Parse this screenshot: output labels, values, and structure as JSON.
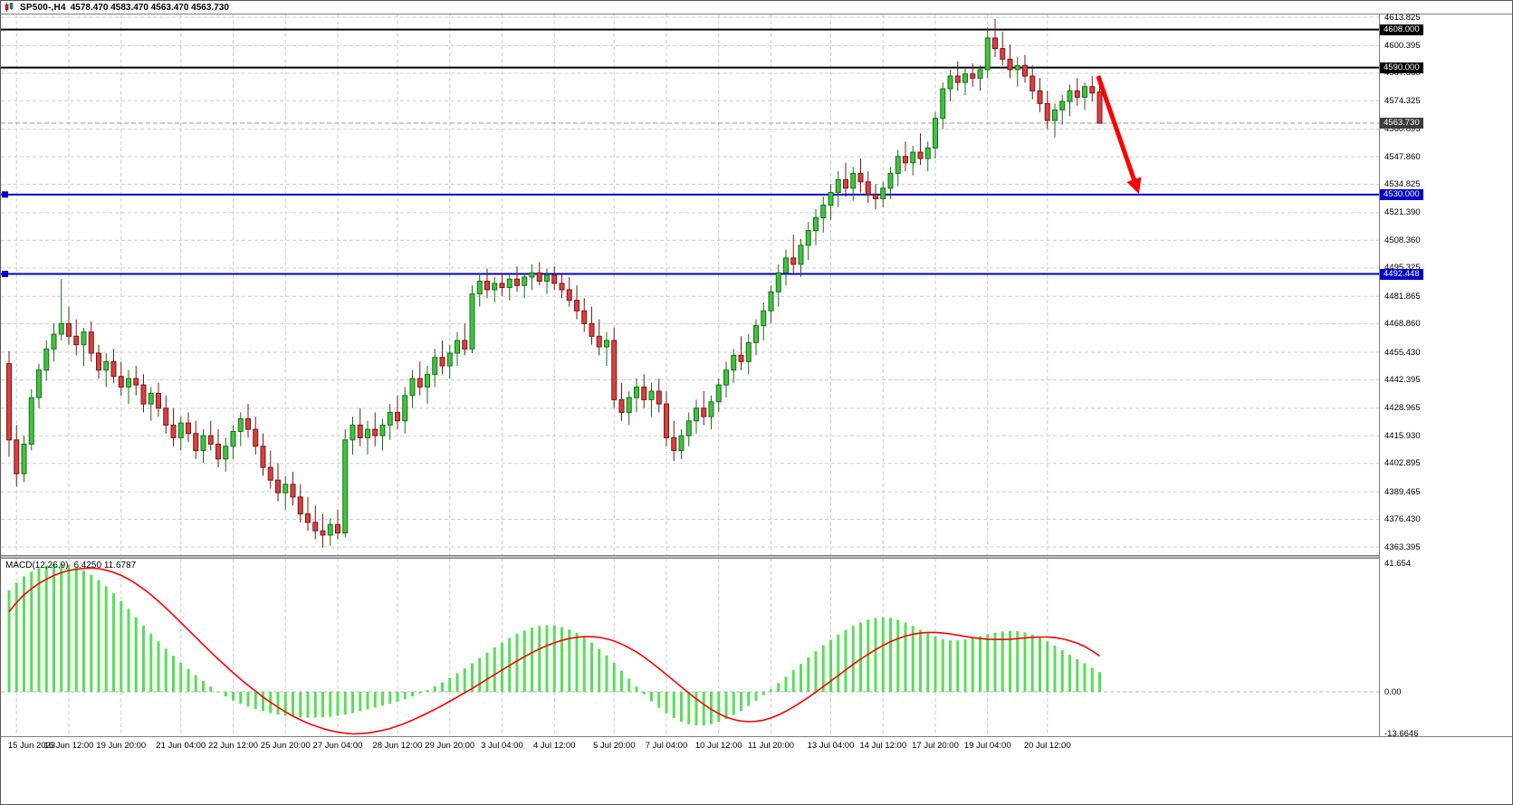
{
  "titlebar": {
    "symbol": "SP500-,H4",
    "ohlc": "4578.470 4583.470 4563.470 4563.730"
  },
  "colors": {
    "bull_fill": "#3fc43f",
    "bull_stroke": "#1c6b1c",
    "bear_fill": "#d84040",
    "bear_stroke": "#7a1515",
    "hist": "#55e055",
    "signal": "#ff0000",
    "level_black": "#000000",
    "level_blue": "#0000cc",
    "grid": "#cdcdcd",
    "bid_line": "#9a9a9a",
    "arrow": "#ff0000"
  },
  "chart_data": {
    "type": "candlestick",
    "title": "SP500-,H4",
    "timeframe": "H4",
    "price_range": [
      4363.395,
      4613.825
    ],
    "price_ticks": [
      4613.825,
      4600.395,
      4587.36,
      4574.325,
      4560.895,
      4547.86,
      4534.825,
      4521.39,
      4508.36,
      4495.325,
      4481.865,
      4468.86,
      4455.43,
      4442.395,
      4428.965,
      4415.93,
      4402.895,
      4389.465,
      4376.43,
      4363.395
    ],
    "level_lines": [
      {
        "value": 4608.0,
        "label": "4608.000",
        "style": "black"
      },
      {
        "value": 4590.0,
        "label": "4590.000",
        "style": "black"
      },
      {
        "value": 4530.0,
        "label": "4530.000",
        "style": "blue"
      },
      {
        "value": 4492.448,
        "label": "4492.448",
        "style": "blue"
      }
    ],
    "current_price": {
      "value": 4563.73,
      "label": "4563.730"
    },
    "time_ticks": [
      {
        "index": 1,
        "label": "15 Jun 2023"
      },
      {
        "index": 8,
        "label": "16 Jun 12:00"
      },
      {
        "index": 15,
        "label": "19 Jun 20:00"
      },
      {
        "index": 23,
        "label": "21 Jun 04:00"
      },
      {
        "index": 30,
        "label": "22 Jun 12:00"
      },
      {
        "index": 37,
        "label": "25 Jun 20:00"
      },
      {
        "index": 44,
        "label": "27 Jun 04:00"
      },
      {
        "index": 52,
        "label": "28 Jun 12:00"
      },
      {
        "index": 59,
        "label": "29 Jun 20:00"
      },
      {
        "index": 66,
        "label": "3 Jul 04:00"
      },
      {
        "index": 73,
        "label": "4 Jul 12:00"
      },
      {
        "index": 81,
        "label": "5 Jul 20:00"
      },
      {
        "index": 88,
        "label": "7 Jul 04:00"
      },
      {
        "index": 95,
        "label": "10 Jul 12:00"
      },
      {
        "index": 102,
        "label": "11 Jul 20:00"
      },
      {
        "index": 110,
        "label": "13 Jul 04:00"
      },
      {
        "index": 117,
        "label": "14 Jul 12:00"
      },
      {
        "index": 124,
        "label": "17 Jul 20:00"
      },
      {
        "index": 131,
        "label": "19 Jul 04:00"
      },
      {
        "index": 139,
        "label": "20 Jul 12:00"
      }
    ],
    "candles": [
      [
        4450,
        4456,
        4406,
        4414
      ],
      [
        4414,
        4421,
        4392,
        4398
      ],
      [
        4398,
        4416,
        4394,
        4412
      ],
      [
        4412,
        4438,
        4409,
        4434
      ],
      [
        4434,
        4450,
        4429,
        4447
      ],
      [
        4447,
        4461,
        4442,
        4457
      ],
      [
        4457,
        4469,
        4451,
        4464
      ],
      [
        4464,
        4490,
        4461,
        4469
      ],
      [
        4469,
        4477,
        4459,
        4463
      ],
      [
        4463,
        4471,
        4454,
        4459
      ],
      [
        4459,
        4467,
        4449,
        4465
      ],
      [
        4465,
        4470,
        4451,
        4455
      ],
      [
        4455,
        4459,
        4443,
        4447
      ],
      [
        4447,
        4455,
        4439,
        4451
      ],
      [
        4451,
        4457,
        4441,
        4444
      ],
      [
        4444,
        4451,
        4435,
        4439
      ],
      [
        4439,
        4447,
        4431,
        4443
      ],
      [
        4443,
        4449,
        4435,
        4440
      ],
      [
        4440,
        4445,
        4427,
        4431
      ],
      [
        4431,
        4439,
        4423,
        4436
      ],
      [
        4436,
        4441,
        4425,
        4429
      ],
      [
        4429,
        4435,
        4417,
        4421
      ],
      [
        4421,
        4429,
        4411,
        4415
      ],
      [
        4415,
        4425,
        4409,
        4422
      ],
      [
        4422,
        4427,
        4413,
        4417
      ],
      [
        4417,
        4423,
        4405,
        4409
      ],
      [
        4409,
        4419,
        4403,
        4416
      ],
      [
        4416,
        4423,
        4409,
        4412
      ],
      [
        4412,
        4419,
        4401,
        4405
      ],
      [
        4405,
        4415,
        4399,
        4411
      ],
      [
        4411,
        4421,
        4405,
        4418
      ],
      [
        4418,
        4427,
        4411,
        4424
      ],
      [
        4424,
        4431,
        4415,
        4419
      ],
      [
        4419,
        4425,
        4407,
        4411
      ],
      [
        4411,
        4417,
        4397,
        4401
      ],
      [
        4401,
        4409,
        4391,
        4395
      ],
      [
        4395,
        4403,
        4385,
        4389
      ],
      [
        4389,
        4397,
        4381,
        4393
      ],
      [
        4393,
        4399,
        4383,
        4387
      ],
      [
        4387,
        4393,
        4375,
        4379
      ],
      [
        4379,
        4387,
        4371,
        4375
      ],
      [
        4375,
        4383,
        4367,
        4371
      ],
      [
        4371,
        4379,
        4363,
        4369
      ],
      [
        4369,
        4377,
        4364,
        4374
      ],
      [
        4374,
        4381,
        4367,
        4370
      ],
      [
        4370,
        4419,
        4368,
        4414
      ],
      [
        4414,
        4425,
        4407,
        4421
      ],
      [
        4421,
        4429,
        4411,
        4415
      ],
      [
        4415,
        4423,
        4407,
        4419
      ],
      [
        4419,
        4427,
        4411,
        4416
      ],
      [
        4416,
        4424,
        4409,
        4421
      ],
      [
        4421,
        4431,
        4414,
        4427
      ],
      [
        4427,
        4435,
        4419,
        4423
      ],
      [
        4423,
        4439,
        4417,
        4435
      ],
      [
        4435,
        4447,
        4429,
        4443
      ],
      [
        4443,
        4451,
        4435,
        4439
      ],
      [
        4439,
        4449,
        4431,
        4445
      ],
      [
        4445,
        4457,
        4439,
        4453
      ],
      [
        4453,
        4461,
        4445,
        4449
      ],
      [
        4449,
        4459,
        4443,
        4455
      ],
      [
        4455,
        4465,
        4449,
        4461
      ],
      [
        4461,
        4469,
        4454,
        4457
      ],
      [
        4457,
        4487,
        4455,
        4483
      ],
      [
        4483,
        4493,
        4477,
        4489
      ],
      [
        4489,
        4495,
        4481,
        4485
      ],
      [
        4485,
        4491,
        4479,
        4488
      ],
      [
        4488,
        4493,
        4482,
        4486
      ],
      [
        4486,
        4492,
        4480,
        4490
      ],
      [
        4490,
        4496,
        4484,
        4487
      ],
      [
        4487,
        4493,
        4481,
        4491
      ],
      [
        4491,
        4497,
        4485,
        4493
      ],
      [
        4493,
        4498,
        4487,
        4489
      ],
      [
        4489,
        4495,
        4483,
        4492
      ],
      [
        4492,
        4496,
        4485,
        4488
      ],
      [
        4488,
        4493,
        4481,
        4485
      ],
      [
        4485,
        4491,
        4477,
        4480
      ],
      [
        4480,
        4487,
        4471,
        4475
      ],
      [
        4475,
        4481,
        4465,
        4469
      ],
      [
        4469,
        4477,
        4459,
        4463
      ],
      [
        4463,
        4471,
        4454,
        4458
      ],
      [
        4458,
        4465,
        4449,
        4461
      ],
      [
        4461,
        4467,
        4429,
        4433
      ],
      [
        4433,
        4441,
        4423,
        4427
      ],
      [
        4427,
        4437,
        4421,
        4434
      ],
      [
        4434,
        4443,
        4427,
        4439
      ],
      [
        4439,
        4445,
        4429,
        4433
      ],
      [
        4433,
        4441,
        4425,
        4437
      ],
      [
        4437,
        4443,
        4427,
        4431
      ],
      [
        4431,
        4437,
        4411,
        4415
      ],
      [
        4415,
        4423,
        4404,
        4409
      ],
      [
        4409,
        4419,
        4405,
        4416
      ],
      [
        4416,
        4427,
        4411,
        4423
      ],
      [
        4423,
        4433,
        4417,
        4429
      ],
      [
        4429,
        4437,
        4421,
        4425
      ],
      [
        4425,
        4435,
        4419,
        4432
      ],
      [
        4432,
        4443,
        4427,
        4440
      ],
      [
        4440,
        4451,
        4434,
        4447
      ],
      [
        4447,
        4457,
        4441,
        4454
      ],
      [
        4454,
        4463,
        4447,
        4451
      ],
      [
        4451,
        4464,
        4445,
        4460
      ],
      [
        4460,
        4471,
        4454,
        4468
      ],
      [
        4468,
        4479,
        4461,
        4475
      ],
      [
        4475,
        4487,
        4469,
        4484
      ],
      [
        4484,
        4497,
        4477,
        4493
      ],
      [
        4493,
        4504,
        4487,
        4500
      ],
      [
        4500,
        4511,
        4493,
        4497
      ],
      [
        4497,
        4509,
        4491,
        4506
      ],
      [
        4506,
        4517,
        4499,
        4513
      ],
      [
        4513,
        4523,
        4506,
        4519
      ],
      [
        4519,
        4529,
        4512,
        4525
      ],
      [
        4525,
        4535,
        4518,
        4531
      ],
      [
        4531,
        4541,
        4524,
        4537
      ],
      [
        4537,
        4545,
        4529,
        4533
      ],
      [
        4533,
        4543,
        4527,
        4540
      ],
      [
        4540,
        4547,
        4531,
        4536
      ],
      [
        4536,
        4541,
        4526,
        4530
      ],
      [
        4530,
        4535,
        4523,
        4528
      ],
      [
        4528,
        4536,
        4524,
        4533
      ],
      [
        4533,
        4543,
        4528,
        4540
      ],
      [
        4540,
        4551,
        4534,
        4548
      ],
      [
        4548,
        4555,
        4541,
        4545
      ],
      [
        4545,
        4553,
        4539,
        4550
      ],
      [
        4550,
        4559,
        4544,
        4547
      ],
      [
        4547,
        4555,
        4541,
        4552
      ],
      [
        4552,
        4569,
        4547,
        4566
      ],
      [
        4566,
        4583,
        4561,
        4580
      ],
      [
        4580,
        4589,
        4574,
        4586
      ],
      [
        4586,
        4593,
        4579,
        4583
      ],
      [
        4583,
        4590,
        4577,
        4587
      ],
      [
        4587,
        4592,
        4581,
        4585
      ],
      [
        4585,
        4591,
        4579,
        4589
      ],
      [
        4589,
        4609,
        4585,
        4604
      ],
      [
        4604,
        4613,
        4595,
        4599
      ],
      [
        4599,
        4607,
        4591,
        4594
      ],
      [
        4594,
        4601,
        4585,
        4589
      ],
      [
        4589,
        4595,
        4581,
        4591
      ],
      [
        4591,
        4596,
        4583,
        4586
      ],
      [
        4586,
        4591,
        4575,
        4579
      ],
      [
        4579,
        4585,
        4569,
        4573
      ],
      [
        4573,
        4579,
        4561,
        4565
      ],
      [
        4565,
        4573,
        4557,
        4570
      ],
      [
        4570,
        4577,
        4563,
        4574
      ],
      [
        4574,
        4582,
        4567,
        4579
      ],
      [
        4579,
        4585,
        4572,
        4576
      ],
      [
        4576,
        4583,
        4570,
        4581
      ],
      [
        4581,
        4586,
        4574,
        4578
      ],
      [
        4578.47,
        4583.47,
        4563.47,
        4563.73
      ]
    ],
    "macd": {
      "label": "MACD(12,26,9)",
      "values_text": "6.4250 11.6787",
      "axis_labels": [
        {
          "value": 41.654,
          "label": "41.654"
        },
        {
          "value": 0,
          "label": "0.00"
        },
        {
          "value": -13.6646,
          "label": "-13.6646"
        }
      ],
      "histogram": [
        33,
        35.5,
        37.5,
        39,
        40.2,
        41,
        41.5,
        41.654,
        41.3,
        40.5,
        39.4,
        38,
        36.3,
        34.3,
        32,
        29.5,
        26.9,
        24.2,
        21.5,
        18.9,
        16.4,
        14,
        11.7,
        9.5,
        7.4,
        5.4,
        3.5,
        1.7,
        0,
        -1.5,
        -2.8,
        -3.9,
        -4.8,
        -5.6,
        -6.3,
        -6.9,
        -7.4,
        -7.8,
        -8.1,
        -8.3,
        -8.4,
        -8.4,
        -8.3,
        -8.1,
        -7.8,
        -7.4,
        -6.9,
        -6.3,
        -5.7,
        -5.1,
        -4.5,
        -3.9,
        -3.2,
        -2.4,
        -1.5,
        -0.5,
        0.6,
        1.8,
        3.1,
        4.5,
        6,
        7.6,
        9.3,
        11,
        12.7,
        14.4,
        16,
        17.5,
        18.8,
        19.9,
        20.8,
        21.4,
        21.6,
        21.5,
        21,
        20.2,
        19.1,
        17.7,
        16,
        14,
        11.8,
        9.4,
        6.9,
        4.3,
        1.7,
        -0.8,
        -3.1,
        -5.2,
        -7,
        -8.5,
        -9.7,
        -10.5,
        -10.9,
        -10.9,
        -10.5,
        -9.8,
        -8.8,
        -7.6,
        -6.2,
        -4.6,
        -2.9,
        -1.1,
        0.8,
        2.8,
        4.9,
        7,
        9.1,
        11.2,
        13.2,
        15.1,
        16.9,
        18.6,
        20.1,
        21.4,
        22.5,
        23.4,
        24,
        24.2,
        24,
        23.4,
        22.5,
        21.4,
        20.2,
        19,
        17.9,
        17.1,
        16.7,
        16.7,
        17,
        17.5,
        18.1,
        18.7,
        19.2,
        19.6,
        19.8,
        19.7,
        19.3,
        18.6,
        17.6,
        16.4,
        15,
        13.5,
        12,
        10.6,
        9.3,
        7.8,
        6.425
      ],
      "signal": [
        26,
        29,
        31.5,
        33.5,
        35.2,
        36.6,
        37.8,
        38.7,
        39.4,
        39.8,
        40.1,
        40.2,
        40,
        39.5,
        38.8,
        37.8,
        36.6,
        35.1,
        33.4,
        31.5,
        29.4,
        27.2,
        24.9,
        22.5,
        20.1,
        17.7,
        15.3,
        12.9,
        10.6,
        8.4,
        6.2,
        4.1,
        2.1,
        0.2,
        -1.7,
        -3.4,
        -5,
        -6.5,
        -7.9,
        -9.1,
        -10.2,
        -11.1,
        -11.9,
        -12.6,
        -13.1,
        -13.45,
        -13.6646,
        -13.6,
        -13.4,
        -13,
        -12.5,
        -11.9,
        -11.1,
        -10.2,
        -9.2,
        -8.1,
        -6.9,
        -5.7,
        -4.4,
        -3.1,
        -1.7,
        -0.3,
        1.1,
        2.6,
        4.1,
        5.6,
        7.1,
        8.6,
        10,
        11.4,
        12.7,
        13.9,
        15,
        15.9,
        16.7,
        17.3,
        17.7,
        17.9,
        17.9,
        17.7,
        17.2,
        16.5,
        15.5,
        14.3,
        12.9,
        11.3,
        9.5,
        7.6,
        5.6,
        3.6,
        1.6,
        -0.4,
        -2.3,
        -4.1,
        -5.7,
        -7.1,
        -8.2,
        -9,
        -9.5,
        -9.7,
        -9.6,
        -9.2,
        -8.5,
        -7.5,
        -6.3,
        -4.9,
        -3.4,
        -1.8,
        -0.1,
        1.7,
        3.5,
        5.3,
        7.1,
        8.9,
        10.6,
        12.2,
        13.7,
        15.1,
        16.3,
        17.3,
        18.1,
        18.7,
        19.1,
        19.3,
        19.3,
        19.1,
        18.8,
        18.4,
        18,
        17.6,
        17.3,
        17.1,
        17,
        17,
        17.1,
        17.3,
        17.5,
        17.7,
        17.8,
        17.8,
        17.6,
        17.2,
        16.6,
        15.8,
        14.7,
        13.3,
        11.6787
      ]
    },
    "annotation": {
      "type": "arrow",
      "from": {
        "index": 145.8,
        "price": 4586
      },
      "to": {
        "index": 151,
        "price": 4533
      }
    }
  }
}
